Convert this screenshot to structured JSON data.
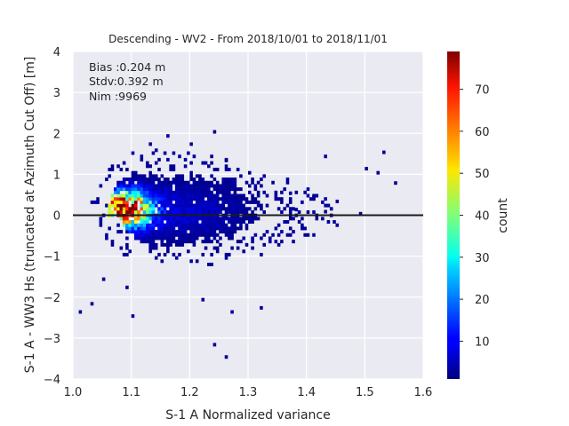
{
  "chart_data": {
    "type": "heatmap",
    "title": "Descending - WV2 - From 2018/10/01 to 2018/11/01",
    "xlabel": "S-1 A Normalized variance",
    "ylabel": "S-1 A - WW3 Hs (truncated at Azimuth Cut Off) [m]",
    "xlim": [
      1.0,
      1.6
    ],
    "ylim": [
      -4,
      4
    ],
    "x_ticks": [
      "1.0",
      "1.1",
      "1.2",
      "1.3",
      "1.4",
      "1.5",
      "1.6"
    ],
    "y_ticks": [
      "4",
      "3",
      "2",
      "1",
      "0",
      "−1",
      "−2",
      "−3",
      "−4"
    ],
    "grid": true,
    "reference_line_y": 0,
    "stats": {
      "bias": "Bias :0.204 m",
      "stdv": "Stdv:0.392 m",
      "nim": "Nim :9969"
    },
    "colorbar": {
      "label": "count",
      "colormap": "jet",
      "range": [
        1,
        79
      ],
      "ticks": [
        "10",
        "20",
        "30",
        "40",
        "50",
        "60",
        "70"
      ]
    },
    "density_peak": {
      "x": 1.09,
      "y": 0.15,
      "count": 79
    },
    "bins": {
      "x_width": 0.005,
      "y_height": 0.08
    }
  },
  "colors": {
    "axes_background": "#eaeaf2",
    "grid": "#ffffff",
    "zero_line": "#1a1a1a"
  }
}
